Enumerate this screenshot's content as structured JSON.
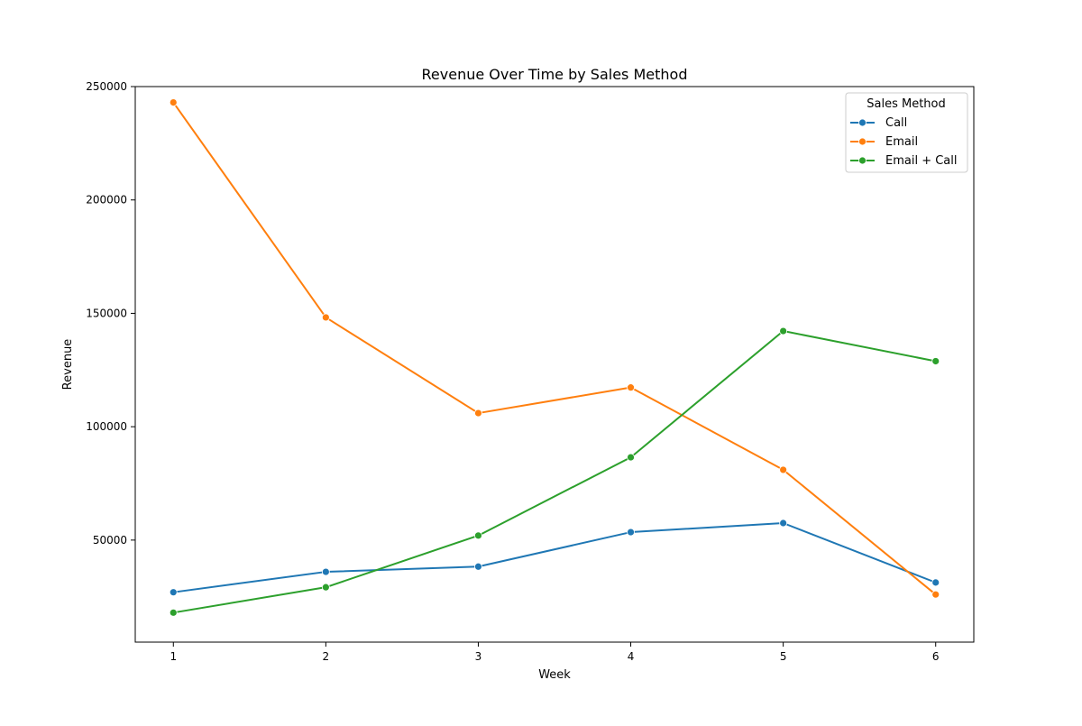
{
  "chart_data": {
    "type": "line",
    "title": "Revenue Over Time by Sales Method",
    "xlabel": "Week",
    "ylabel": "Revenue",
    "x": [
      1,
      2,
      3,
      4,
      5,
      6
    ],
    "xticks": [
      "1",
      "2",
      "3",
      "4",
      "5",
      "6"
    ],
    "yticks": [
      "50000",
      "100000",
      "150000",
      "200000",
      "250000"
    ],
    "xlim": [
      0.75,
      6.25
    ],
    "ylim": [
      5000,
      250000
    ],
    "grid": false,
    "legend": {
      "title": "Sales Method",
      "placement": "upper-right",
      "entries": [
        "Call",
        "Email",
        "Email + Call"
      ]
    },
    "series": [
      {
        "name": "Call",
        "color": "#1f77b4",
        "values": [
          27000,
          36000,
          38300,
          53500,
          57500,
          31300
        ]
      },
      {
        "name": "Email",
        "color": "#ff7f0e",
        "values": [
          243000,
          148200,
          106000,
          117300,
          81000,
          26000
        ]
      },
      {
        "name": "Email + Call",
        "color": "#2ca02c",
        "values": [
          18000,
          29200,
          52000,
          86500,
          142200,
          128900
        ]
      }
    ]
  }
}
